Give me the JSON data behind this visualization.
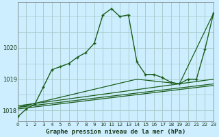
{
  "title": "Graphe pression niveau de la mer (hPa)",
  "bg_color": "#cceeff",
  "grid_color": "#aacccc",
  "line_color_dark": "#1a5c1a",
  "xlim": [
    0,
    23
  ],
  "ylim": [
    1017.65,
    1021.45
  ],
  "yticks": [
    1018,
    1019,
    1020
  ],
  "xticks": [
    0,
    1,
    2,
    3,
    4,
    5,
    6,
    7,
    8,
    9,
    10,
    11,
    12,
    13,
    14,
    15,
    16,
    17,
    18,
    19,
    20,
    21,
    22,
    23
  ],
  "series1_x": [
    0,
    1,
    2,
    3,
    4,
    5,
    6,
    7,
    8,
    9,
    10,
    11,
    12,
    13,
    14,
    15,
    16,
    17,
    18,
    19,
    20,
    21,
    22,
    23
  ],
  "series1_y": [
    1017.8,
    1018.05,
    1018.2,
    1018.75,
    1019.3,
    1019.4,
    1019.5,
    1019.7,
    1019.85,
    1020.15,
    1021.05,
    1021.25,
    1021.0,
    1021.05,
    1019.55,
    1019.15,
    1019.15,
    1019.05,
    1018.9,
    1018.85,
    1019.0,
    1019.0,
    1019.95,
    1021.1
  ],
  "series2_x": [
    0,
    23
  ],
  "series2_y": [
    1018.05,
    1018.8
  ],
  "series3_x": [
    0,
    23
  ],
  "series3_y": [
    1018.1,
    1018.85
  ],
  "series4_x": [
    0,
    23
  ],
  "series4_y": [
    1018.15,
    1019.0
  ],
  "series5_x": [
    0,
    14,
    19,
    23
  ],
  "series5_y": [
    1018.1,
    1019.0,
    1018.85,
    1021.1
  ]
}
